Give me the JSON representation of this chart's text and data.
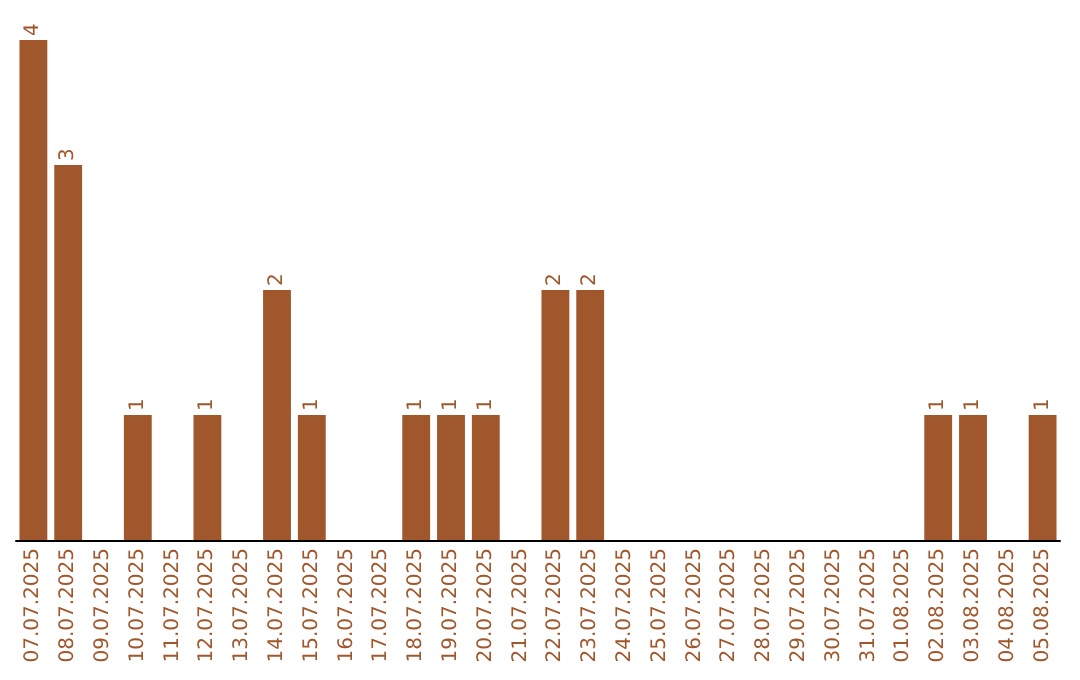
{
  "chart_data": {
    "type": "bar",
    "categories": [
      "07.07.2025",
      "08.07.2025",
      "09.07.2025",
      "10.07.2025",
      "11.07.2025",
      "12.07.2025",
      "13.07.2025",
      "14.07.2025",
      "15.07.2025",
      "16.07.2025",
      "17.07.2025",
      "18.07.2025",
      "19.07.2025",
      "20.07.2025",
      "21.07.2025",
      "22.07.2025",
      "23.07.2025",
      "24.07.2025",
      "25.07.2025",
      "26.07.2025",
      "27.07.2025",
      "28.07.2025",
      "29.07.2025",
      "30.07.2025",
      "31.07.2025",
      "01.08.2025",
      "02.08.2025",
      "03.08.2025",
      "04.08.2025",
      "05.08.2025"
    ],
    "values": [
      4,
      3,
      0,
      1,
      0,
      1,
      0,
      2,
      1,
      0,
      0,
      1,
      1,
      1,
      0,
      2,
      2,
      0,
      0,
      0,
      0,
      0,
      0,
      0,
      0,
      0,
      1,
      1,
      0,
      1
    ],
    "value_labels": [
      "4",
      "3",
      null,
      "1",
      null,
      "1",
      null,
      "2",
      "1",
      null,
      null,
      "1",
      "1",
      "1",
      null,
      "2",
      "2",
      null,
      null,
      null,
      null,
      null,
      null,
      null,
      null,
      null,
      "1",
      "1",
      null,
      "1"
    ],
    "color": "#a0572b"
  }
}
